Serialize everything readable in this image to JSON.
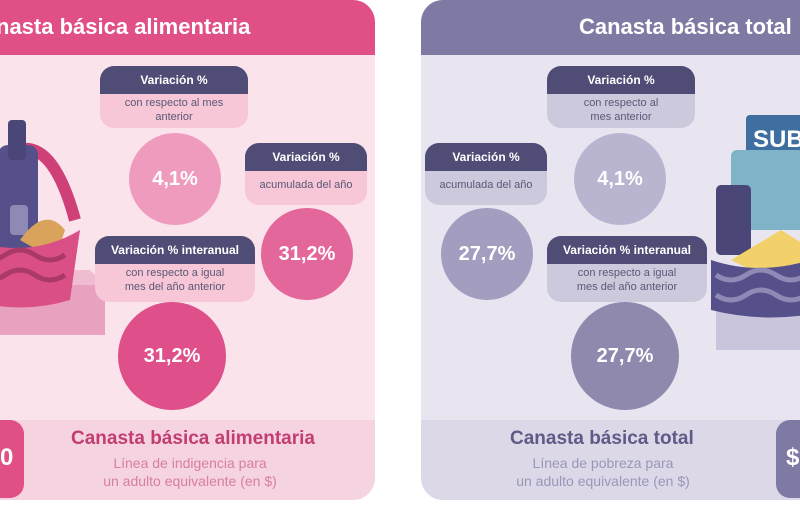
{
  "left": {
    "header_title": "nasta básica alimentaria",
    "side_value": "0",
    "labels": {
      "monthly": {
        "title": "Variación %",
        "body": "con respecto al mes anterior"
      },
      "ytd": {
        "title": "Variación %",
        "body": "acumulada del año"
      },
      "yoy": {
        "title": "Variación % interanual",
        "body": "con respecto a igual mes del año anterior"
      }
    },
    "values": {
      "monthly": "4,1%",
      "ytd": "31,2%",
      "yoy": "31,2%"
    },
    "footer": {
      "title": "Canasta básica alimentaria",
      "subtitle_1": "Línea de indigencia para",
      "subtitle_2": "un adulto equivalente (en $)"
    },
    "colors": {
      "accent": "#e04f86",
      "panel": "#fbe3ec"
    }
  },
  "right": {
    "header_title": "Canasta básica total",
    "side_value": "$",
    "card_text": "SUB",
    "labels": {
      "monthly": {
        "title": "Variación %",
        "body": "con respecto al mes anterior"
      },
      "ytd": {
        "title": "Variación %",
        "body": "acumulada del año"
      },
      "yoy": {
        "title": "Variación % interanual",
        "body": "con respecto a igual mes del año anterior"
      }
    },
    "values": {
      "monthly": "4,1%",
      "ytd": "27,7%",
      "yoy": "27,7%"
    },
    "footer": {
      "title": "Canasta básica total",
      "subtitle_1": "Línea de pobreza para",
      "subtitle_2": "un adulto equivalente (en $)"
    },
    "colors": {
      "accent": "#7f7aa3",
      "panel": "#e8e5f0"
    }
  }
}
